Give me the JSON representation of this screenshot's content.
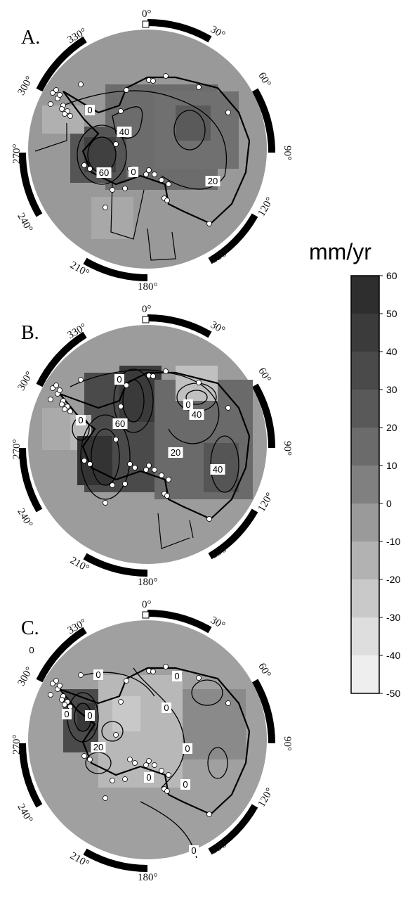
{
  "panels": [
    {
      "label": "A.",
      "contour_labels": [
        "0",
        "40",
        "60",
        "0",
        "20"
      ],
      "dots": 34
    },
    {
      "label": "B.",
      "contour_labels": [
        "0",
        "0",
        "60",
        "40",
        "20",
        "40",
        "0"
      ],
      "dots": 34
    },
    {
      "label": "C.",
      "contour_labels": [
        "0",
        "0",
        "0",
        "0",
        "0",
        "0",
        "20",
        "0",
        "0",
        "0",
        "0"
      ],
      "dots": 34
    }
  ],
  "longitude_labels": {
    "l0": "0°",
    "l30": "30°",
    "l60": "60°",
    "l90": "90°",
    "l120": "120°",
    "l150": "150°",
    "l180": "180°",
    "l210": "210°",
    "l240": "240°",
    "l270": "270°",
    "l300": "300°",
    "l330": "330°"
  },
  "legend": {
    "title": "mm/yr",
    "ticks": [
      "60",
      "50",
      "40",
      "30",
      "20",
      "10",
      "0",
      "-10",
      "-20",
      "-30",
      "-40",
      "-50"
    ],
    "colors": [
      "#2e2e2e",
      "#3b3b3b",
      "#4a4a4a",
      "#595959",
      "#6b6b6b",
      "#808080",
      "#9a9a9a",
      "#b2b2b2",
      "#c9c9c9",
      "#dedede",
      "#eeeeee",
      "#ffffff"
    ]
  }
}
